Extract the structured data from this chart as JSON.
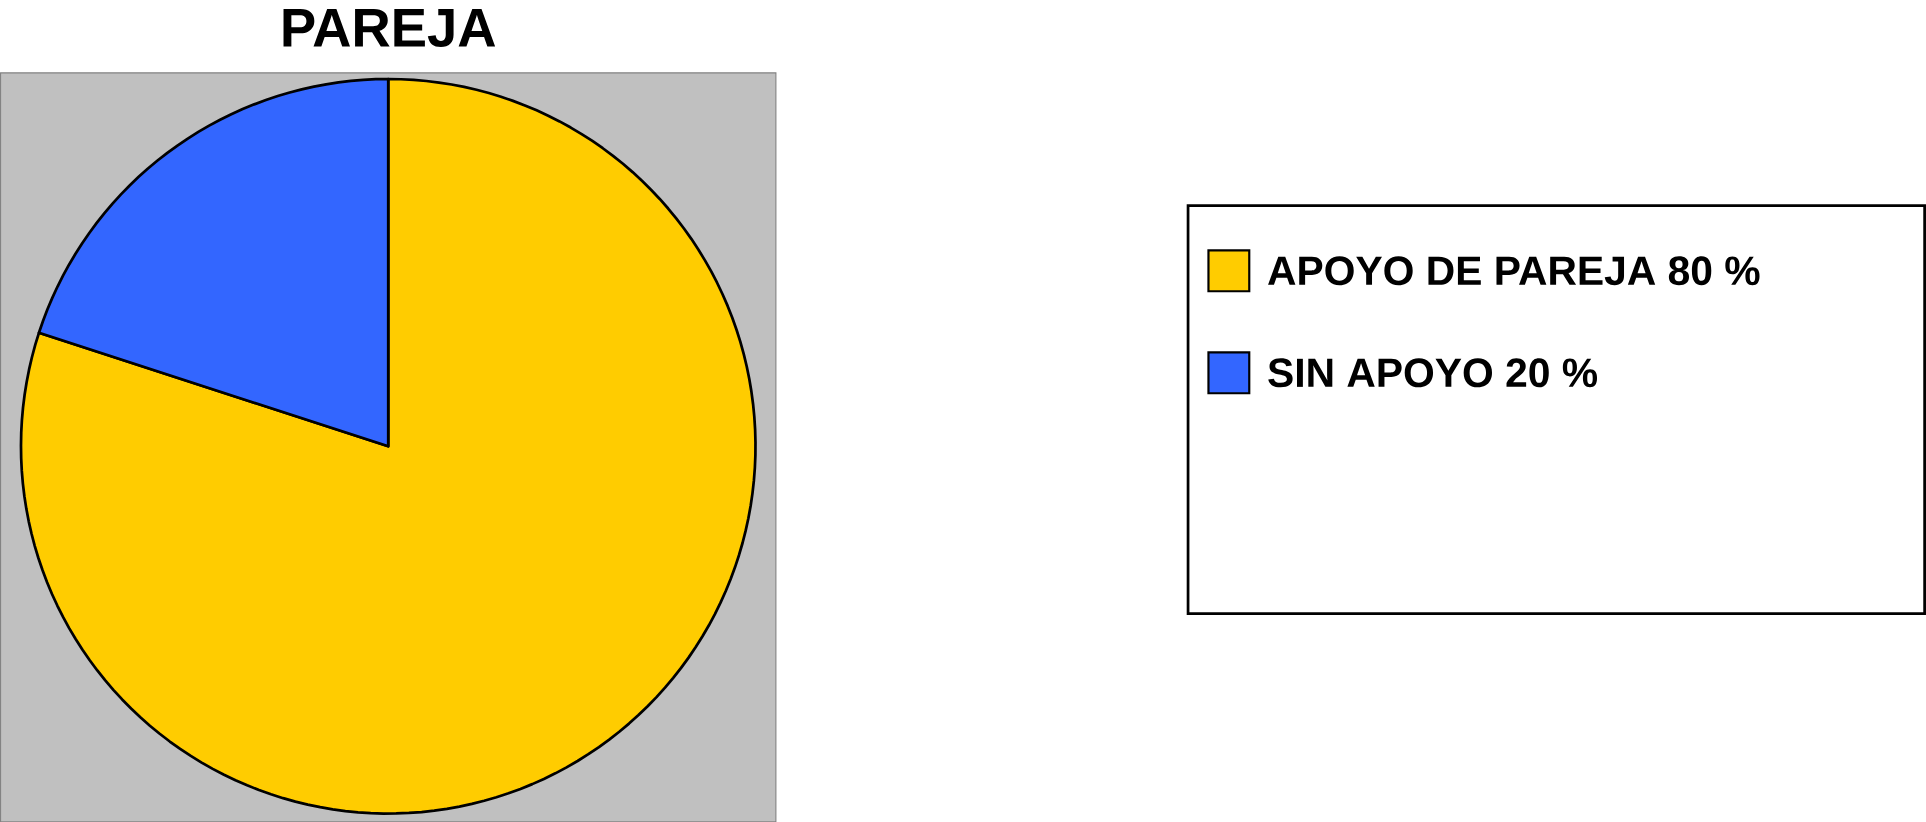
{
  "chart_data": {
    "type": "pie",
    "title": "PAREJA",
    "categories": [
      "APOYO DE PAREJA 80 %",
      "SIN APOYO 20 %"
    ],
    "values": [
      80,
      20
    ],
    "colors": [
      "#ffcc00",
      "#3366ff"
    ],
    "legend": "right"
  }
}
